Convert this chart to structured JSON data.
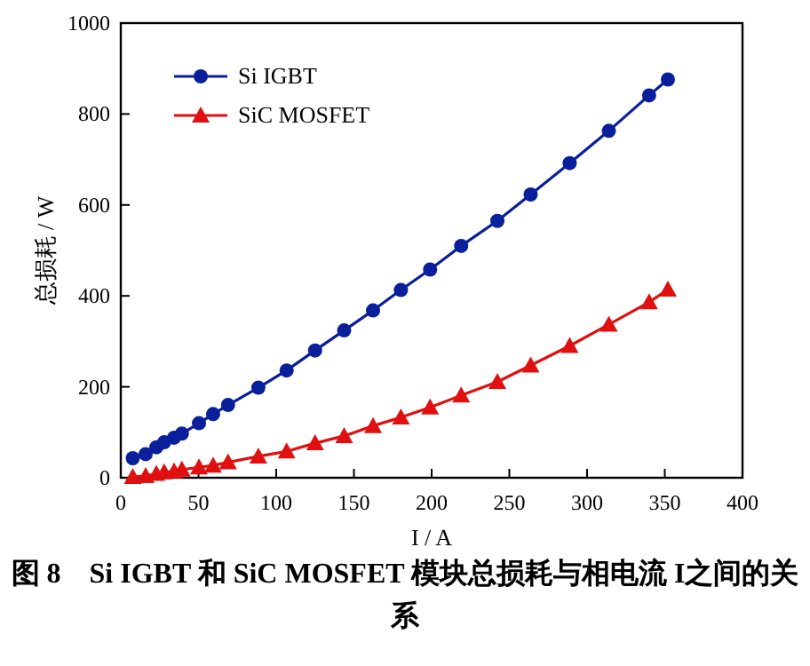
{
  "chart_data": {
    "type": "line",
    "title": "图 8　Si IGBT 和 SiC MOSFET 模块总损耗与相电流 I之间的关系",
    "xlabel": "I / A",
    "ylabel": "总损耗 / W",
    "x": [
      7.7,
      16,
      22.9,
      27.9,
      34.3,
      39.3,
      50.3,
      59.4,
      69,
      88.5,
      106.7,
      125,
      143.7,
      162.3,
      180.2,
      199,
      219,
      242.3,
      263.7,
      288.8,
      314,
      339.9,
      352
    ],
    "xlim": [
      0,
      400
    ],
    "ylim": [
      0,
      1000
    ],
    "xticks": [
      0,
      50,
      100,
      150,
      200,
      250,
      300,
      350,
      400
    ],
    "yticks": [
      0,
      200,
      400,
      600,
      800,
      1000
    ],
    "legend": "top left",
    "series": [
      {
        "name": "Si IGBT",
        "color": "#0a1f9c",
        "marker": "circle",
        "values": [
          43,
          52,
          67,
          78,
          88,
          97,
          120,
          140,
          160,
          198,
          236,
          280,
          324,
          368,
          413,
          458,
          510,
          565,
          623,
          692,
          763,
          841,
          876
        ]
      },
      {
        "name": "SiC MOSFET",
        "color": "#e01010",
        "marker": "triangle",
        "values": [
          2,
          4,
          9,
          12,
          14,
          18,
          23,
          27,
          34,
          47,
          58,
          76,
          92,
          114,
          133,
          155,
          181,
          211,
          247,
          290,
          337,
          386,
          414
        ]
      }
    ]
  }
}
